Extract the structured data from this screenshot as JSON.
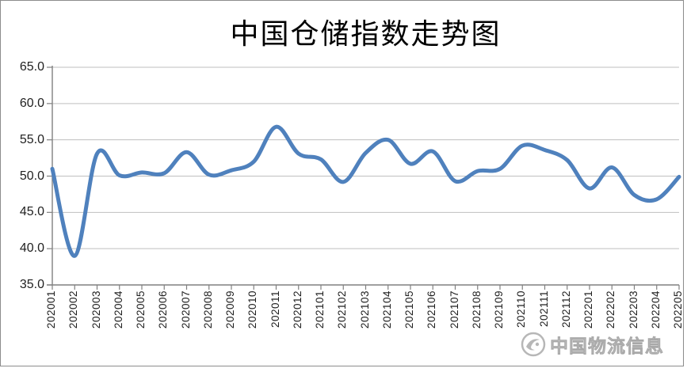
{
  "title": "中国仓储指数走势图",
  "watermark": {
    "text": "中国物流信息",
    "icon": "logistics-logo-icon"
  },
  "colors": {
    "line": "#4F81BD",
    "gridline": "#BFBFBF",
    "axis": "#808080",
    "tick_text": "#1f1f1f",
    "frame": "#8c8c8c",
    "watermark": "#b5b5b5"
  },
  "chart_data": {
    "type": "line",
    "title": "中国仓储指数走势图",
    "xlabel": "",
    "ylabel": "",
    "categories": [
      "202001",
      "202002",
      "202003",
      "202004",
      "202005",
      "202006",
      "202007",
      "202008",
      "202009",
      "202010",
      "202011",
      "202012",
      "202101",
      "202102",
      "202103",
      "202104",
      "202105",
      "202106",
      "202107",
      "202108",
      "202109",
      "202110",
      "202111",
      "202112",
      "202201",
      "202202",
      "202203",
      "202204",
      "202205"
    ],
    "values": [
      51.0,
      39.0,
      53.1,
      50.1,
      50.5,
      50.4,
      53.3,
      50.2,
      50.8,
      52.0,
      56.8,
      53.1,
      52.3,
      49.2,
      53.2,
      55.0,
      51.7,
      53.4,
      49.3,
      50.7,
      51.0,
      54.2,
      53.6,
      52.2,
      48.3,
      51.2,
      47.4,
      46.8,
      49.9
    ],
    "ylim": [
      35.0,
      65.0
    ],
    "ytick_step": 5.0,
    "ytick_labels": [
      "65.0",
      "60.0",
      "55.0",
      "50.0",
      "45.0",
      "40.0",
      "35.0"
    ],
    "grid": true,
    "smooth": true,
    "legend": false,
    "line_width": 5
  }
}
